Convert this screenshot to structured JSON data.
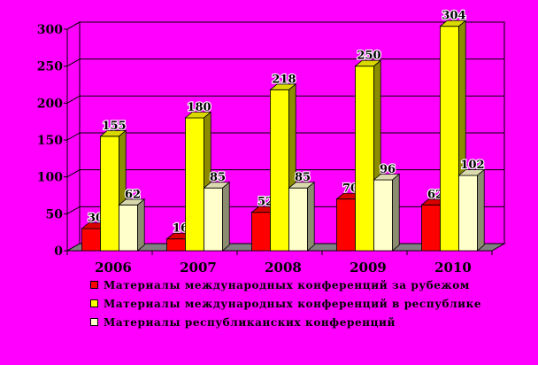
{
  "chart_data": {
    "type": "bar",
    "categories": [
      "2006",
      "2007",
      "2008",
      "2009",
      "2010"
    ],
    "series": [
      {
        "name": "Материалы международных конференций за рубежом",
        "values": [
          30,
          16,
          52,
          70,
          62
        ],
        "color": "#FF0000"
      },
      {
        "name": "Материалы международных конференций в республике",
        "values": [
          155,
          180,
          218,
          250,
          304
        ],
        "color": "#FFFF00"
      },
      {
        "name": "Материалы республиканских конференций",
        "values": [
          62,
          85,
          85,
          96,
          102
        ],
        "color": "#FFFFCC"
      }
    ],
    "yticks": [
      "0",
      "50",
      "100",
      "150",
      "200",
      "250",
      "300"
    ],
    "ylim": [
      0,
      300
    ],
    "grid": true,
    "legend_position": "bottom",
    "colors": {
      "background": "#FF00FF",
      "plot_wall": "#FF00FF",
      "floor": "#808080"
    }
  }
}
